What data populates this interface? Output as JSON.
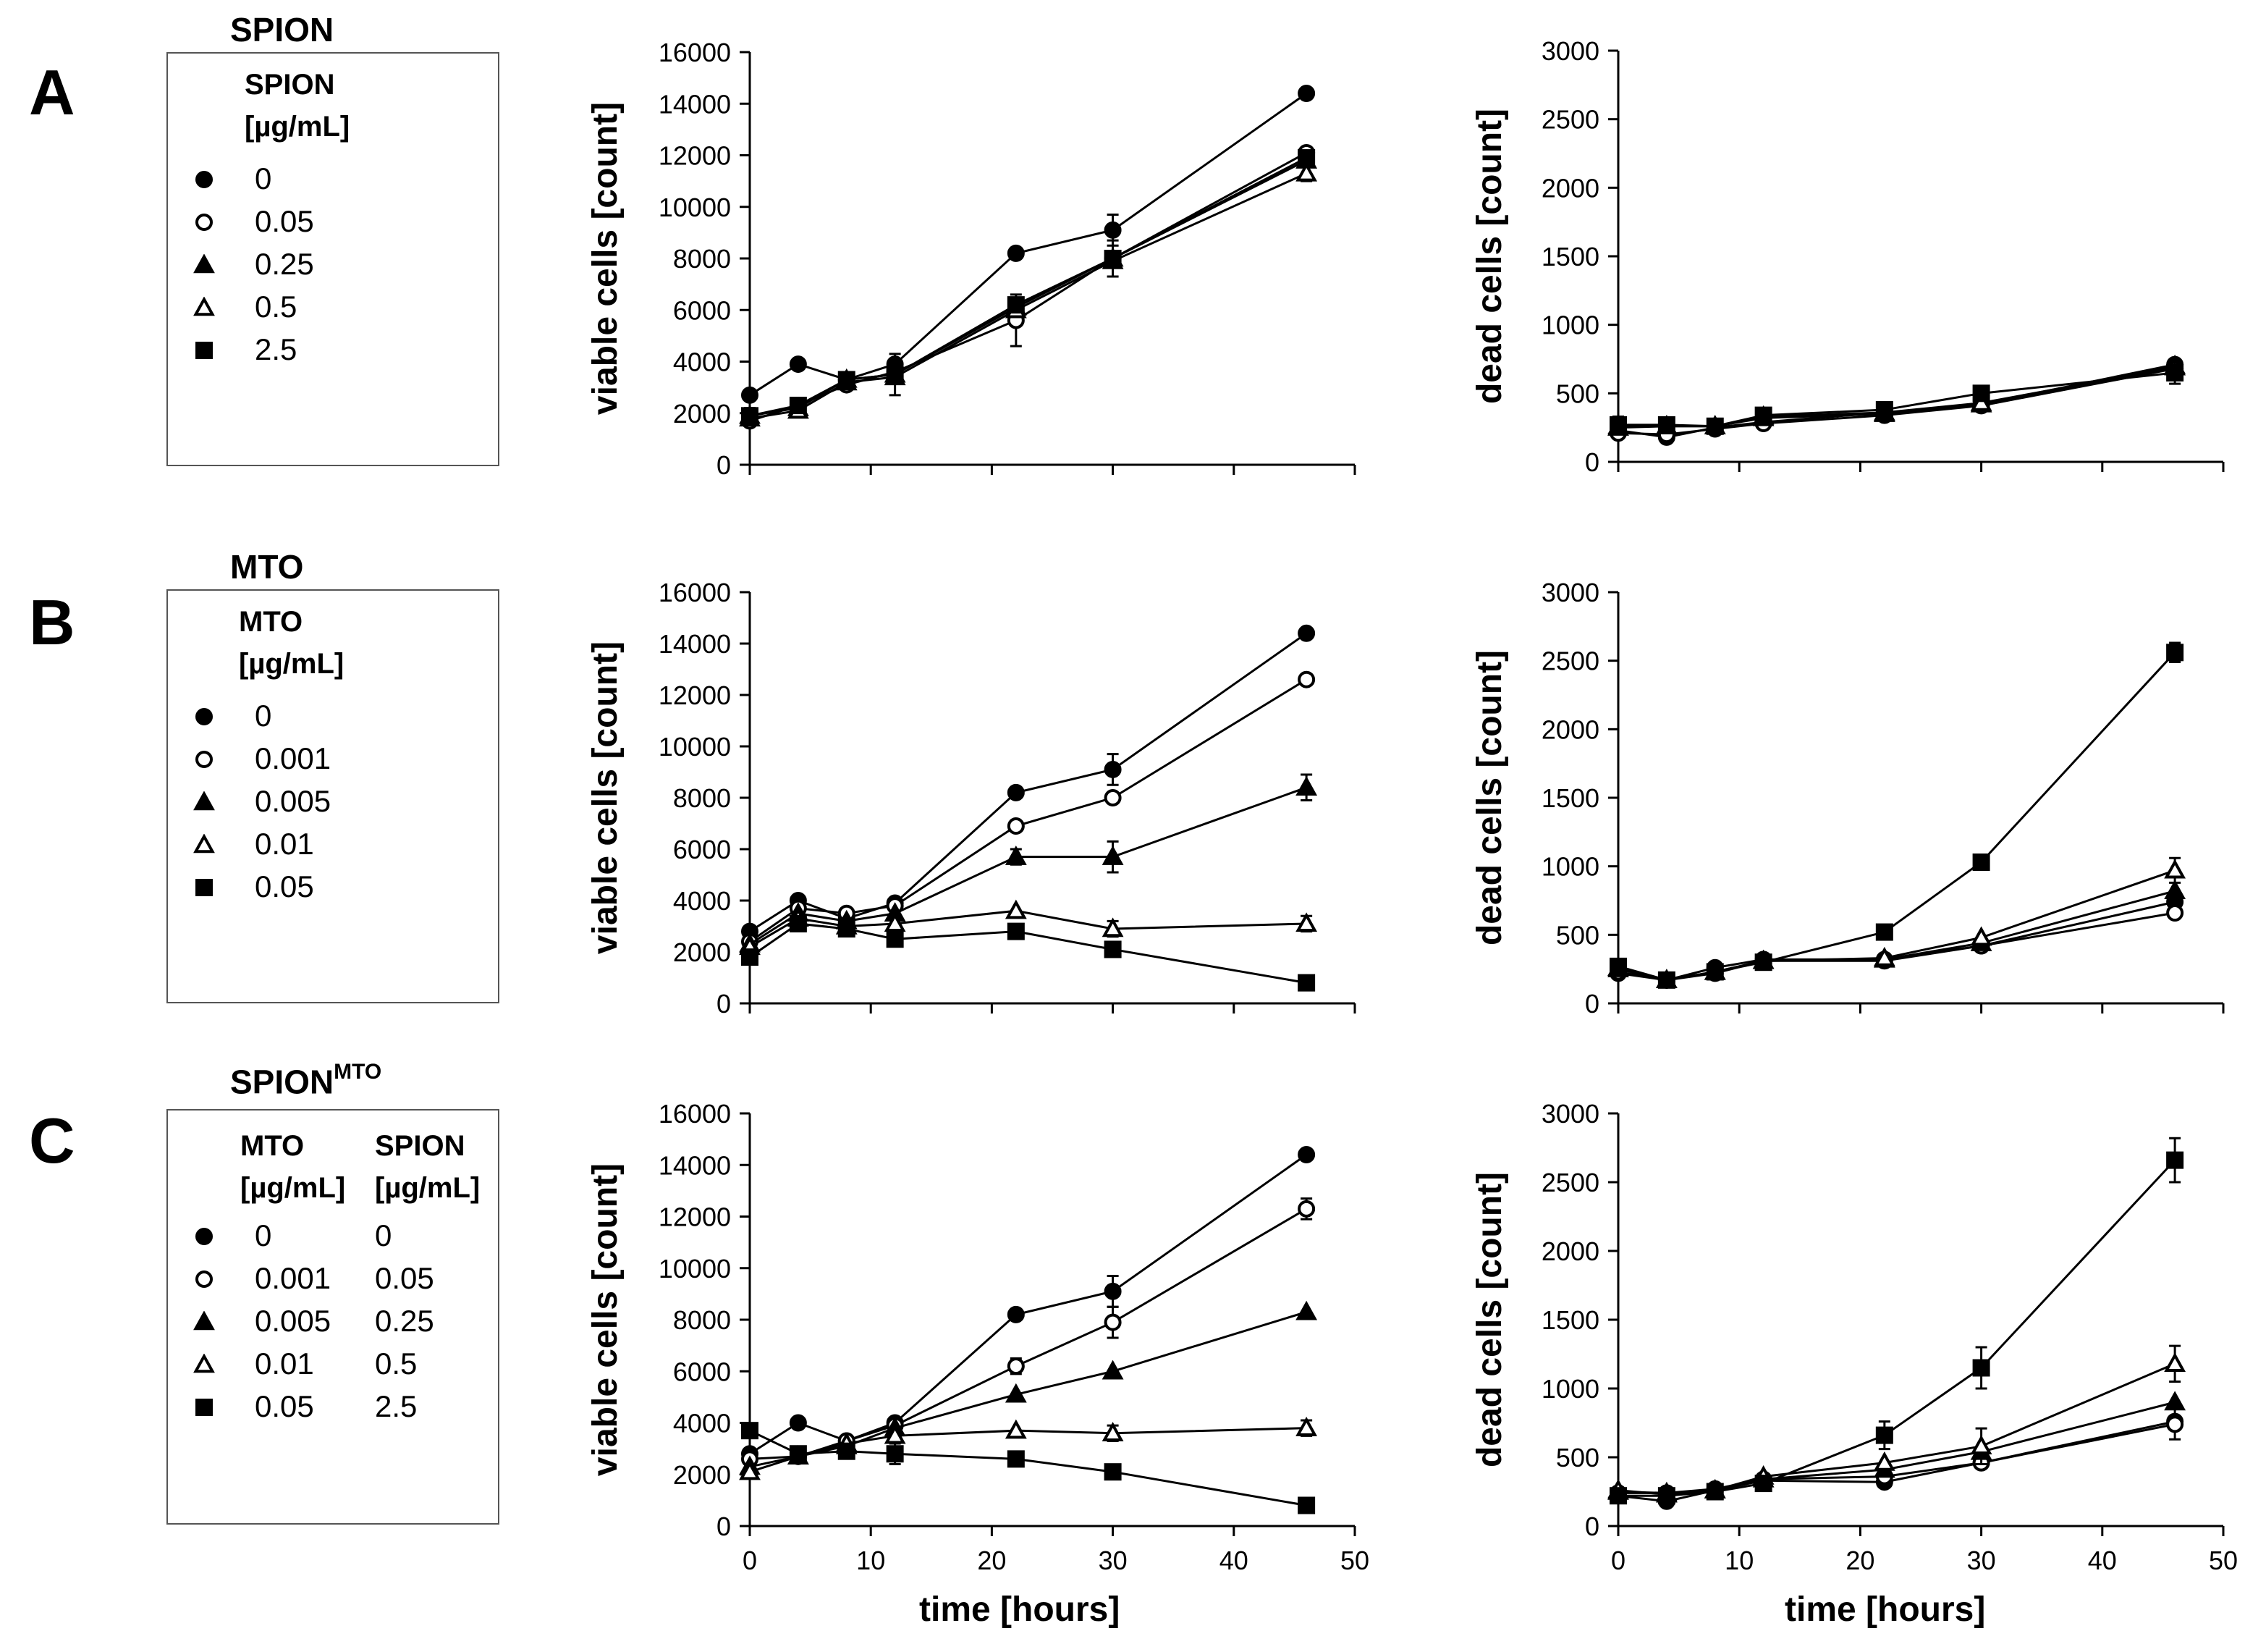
{
  "panels": [
    {
      "letter": "A",
      "title": "SPION",
      "title_sup": "",
      "legend_headers": [
        [
          "SPION",
          "[µg/mL]"
        ]
      ],
      "legend_rows": [
        {
          "marker": "filled-circle",
          "labels": [
            "0"
          ]
        },
        {
          "marker": "open-circle",
          "labels": [
            "0.05"
          ]
        },
        {
          "marker": "filled-triangle",
          "labels": [
            "0.25"
          ]
        },
        {
          "marker": "open-triangle",
          "labels": [
            "0.5"
          ]
        },
        {
          "marker": "filled-square",
          "labels": [
            "2.5"
          ]
        }
      ]
    },
    {
      "letter": "B",
      "title": "MTO",
      "title_sup": "",
      "legend_headers": [
        [
          "MTO",
          "[µg/mL]"
        ]
      ],
      "legend_rows": [
        {
          "marker": "filled-circle",
          "labels": [
            "0"
          ]
        },
        {
          "marker": "open-circle",
          "labels": [
            "0.001"
          ]
        },
        {
          "marker": "filled-triangle",
          "labels": [
            "0.005"
          ]
        },
        {
          "marker": "open-triangle",
          "labels": [
            "0.01"
          ]
        },
        {
          "marker": "filled-square",
          "labels": [
            "0.05"
          ]
        }
      ]
    },
    {
      "letter": "C",
      "title": "SPION",
      "title_sup": "MTO",
      "legend_headers": [
        [
          "MTO",
          "[µg/mL]"
        ],
        [
          "SPION",
          "[µg/mL]"
        ]
      ],
      "legend_rows": [
        {
          "marker": "filled-circle",
          "labels": [
            "0",
            "0"
          ]
        },
        {
          "marker": "open-circle",
          "labels": [
            "0.001",
            "0.05"
          ]
        },
        {
          "marker": "filled-triangle",
          "labels": [
            "0.005",
            "0.25"
          ]
        },
        {
          "marker": "open-triangle",
          "labels": [
            "0.01",
            "0.5"
          ]
        },
        {
          "marker": "filled-square",
          "labels": [
            "0.05",
            "2.5"
          ]
        }
      ]
    }
  ],
  "x_axis_title": "time [hours]",
  "chart_data": [
    {
      "type": "line",
      "panel": "A",
      "title": "",
      "ylabel": "viable cells [count]",
      "xlabel": "",
      "xlim": [
        0,
        50
      ],
      "ylim": [
        0,
        16000
      ],
      "xticks": [
        0,
        10,
        20,
        30,
        40,
        50
      ],
      "yticks": [
        0,
        2000,
        4000,
        6000,
        8000,
        10000,
        12000,
        14000,
        16000
      ],
      "show_xticklabels": false,
      "x": [
        0,
        4,
        8,
        12,
        22,
        30,
        46
      ],
      "series": [
        {
          "name": "0",
          "marker": "filled-circle",
          "values": [
            2700,
            3900,
            3300,
            3900,
            8200,
            9100,
            14400
          ],
          "errors": [
            0,
            0,
            0,
            0,
            0,
            600,
            0
          ]
        },
        {
          "name": "0.05",
          "marker": "open-circle",
          "values": [
            1700,
            2300,
            3100,
            3600,
            5600,
            8000,
            12100
          ],
          "errors": [
            0,
            0,
            0,
            0,
            1000,
            0,
            0
          ]
        },
        {
          "name": "0.25",
          "marker": "filled-triangle",
          "values": [
            1900,
            2200,
            3300,
            3500,
            6100,
            8000,
            11800
          ],
          "errors": [
            0,
            0,
            0,
            0,
            0,
            0,
            0
          ]
        },
        {
          "name": "0.5",
          "marker": "open-triangle",
          "values": [
            1800,
            2100,
            3200,
            3400,
            6000,
            7900,
            11300
          ],
          "errors": [
            0,
            0,
            0,
            0,
            0,
            0,
            300
          ]
        },
        {
          "name": "2.5",
          "marker": "filled-square",
          "values": [
            1900,
            2300,
            3300,
            3500,
            6200,
            8000,
            11900
          ],
          "errors": [
            300,
            0,
            0,
            800,
            0,
            700,
            0
          ]
        }
      ]
    },
    {
      "type": "line",
      "panel": "A",
      "title": "",
      "ylabel": "dead cells [count]",
      "xlabel": "",
      "xlim": [
        0,
        50
      ],
      "ylim": [
        0,
        3000
      ],
      "xticks": [
        0,
        10,
        20,
        30,
        40,
        50
      ],
      "yticks": [
        0,
        500,
        1000,
        1500,
        2000,
        2500,
        3000
      ],
      "show_xticklabels": false,
      "x": [
        0,
        4,
        8,
        12,
        22,
        30,
        46
      ],
      "series": [
        {
          "name": "0",
          "marker": "filled-circle",
          "values": [
            230,
            180,
            250,
            290,
            360,
            420,
            710
          ],
          "errors": [
            0,
            0,
            0,
            0,
            0,
            0,
            0
          ]
        },
        {
          "name": "0.05",
          "marker": "open-circle",
          "values": [
            210,
            200,
            240,
            280,
            340,
            410,
            680
          ],
          "errors": [
            0,
            0,
            0,
            0,
            0,
            0,
            0
          ]
        },
        {
          "name": "0.25",
          "marker": "filled-triangle",
          "values": [
            250,
            260,
            260,
            320,
            350,
            420,
            700
          ],
          "errors": [
            0,
            0,
            0,
            0,
            0,
            0,
            0
          ]
        },
        {
          "name": "0.5",
          "marker": "open-triangle",
          "values": [
            260,
            260,
            260,
            330,
            360,
            430,
            690
          ],
          "errors": [
            0,
            0,
            0,
            0,
            0,
            0,
            0
          ]
        },
        {
          "name": "2.5",
          "marker": "filled-square",
          "values": [
            270,
            270,
            260,
            340,
            380,
            500,
            650
          ],
          "errors": [
            60,
            0,
            0,
            0,
            0,
            0,
            80
          ]
        }
      ]
    },
    {
      "type": "line",
      "panel": "B",
      "title": "",
      "ylabel": "viable cells [count]",
      "xlabel": "",
      "xlim": [
        0,
        50
      ],
      "ylim": [
        0,
        16000
      ],
      "xticks": [
        0,
        10,
        20,
        30,
        40,
        50
      ],
      "yticks": [
        0,
        2000,
        4000,
        6000,
        8000,
        10000,
        12000,
        14000,
        16000
      ],
      "show_xticklabels": false,
      "x": [
        0,
        4,
        8,
        12,
        22,
        30,
        46
      ],
      "series": [
        {
          "name": "0",
          "marker": "filled-circle",
          "values": [
            2800,
            4000,
            3300,
            3900,
            8200,
            9100,
            14400
          ],
          "errors": [
            0,
            0,
            0,
            0,
            0,
            600,
            0
          ]
        },
        {
          "name": "0.001",
          "marker": "open-circle",
          "values": [
            2400,
            3700,
            3500,
            3800,
            6900,
            8000,
            12600
          ],
          "errors": [
            0,
            0,
            0,
            0,
            0,
            0,
            0
          ]
        },
        {
          "name": "0.005",
          "marker": "filled-triangle",
          "values": [
            2300,
            3500,
            3200,
            3500,
            5700,
            5700,
            8400
          ],
          "errors": [
            0,
            0,
            0,
            0,
            300,
            600,
            500
          ]
        },
        {
          "name": "0.01",
          "marker": "open-triangle",
          "values": [
            2200,
            3300,
            3000,
            3100,
            3600,
            2900,
            3100
          ],
          "errors": [
            0,
            0,
            0,
            0,
            0,
            300,
            300
          ]
        },
        {
          "name": "0.05",
          "marker": "filled-square",
          "values": [
            1800,
            3100,
            2900,
            2500,
            2800,
            2100,
            800
          ],
          "errors": [
            0,
            0,
            0,
            0,
            0,
            0,
            0
          ]
        }
      ]
    },
    {
      "type": "line",
      "panel": "B",
      "title": "",
      "ylabel": "dead cells [count]",
      "xlabel": "",
      "xlim": [
        0,
        50
      ],
      "ylim": [
        0,
        3000
      ],
      "xticks": [
        0,
        10,
        20,
        30,
        40,
        50
      ],
      "yticks": [
        0,
        500,
        1000,
        1500,
        2000,
        2500,
        3000
      ],
      "show_xticklabels": false,
      "x": [
        0,
        4,
        8,
        12,
        22,
        30,
        46
      ],
      "series": [
        {
          "name": "0",
          "marker": "filled-circle",
          "values": [
            220,
            170,
            260,
            320,
            320,
            420,
            740
          ],
          "errors": [
            0,
            0,
            0,
            0,
            0,
            0,
            0
          ]
        },
        {
          "name": "0.001",
          "marker": "open-circle",
          "values": [
            230,
            170,
            220,
            310,
            310,
            420,
            660
          ],
          "errors": [
            0,
            0,
            0,
            0,
            0,
            0,
            0
          ]
        },
        {
          "name": "0.005",
          "marker": "filled-triangle",
          "values": [
            250,
            170,
            230,
            310,
            320,
            440,
            820
          ],
          "errors": [
            0,
            0,
            0,
            0,
            0,
            0,
            0
          ]
        },
        {
          "name": "0.01",
          "marker": "open-triangle",
          "values": [
            260,
            170,
            230,
            310,
            330,
            480,
            970
          ],
          "errors": [
            0,
            0,
            0,
            0,
            0,
            0,
            90
          ]
        },
        {
          "name": "0.05",
          "marker": "filled-square",
          "values": [
            270,
            170,
            230,
            300,
            520,
            1030,
            2560
          ],
          "errors": [
            0,
            0,
            0,
            0,
            0,
            0,
            70
          ]
        }
      ]
    },
    {
      "type": "line",
      "panel": "C",
      "title": "",
      "ylabel": "viable cells [count]",
      "xlabel": "time [hours]",
      "xlim": [
        0,
        50
      ],
      "ylim": [
        0,
        16000
      ],
      "xticks": [
        0,
        10,
        20,
        30,
        40,
        50
      ],
      "yticks": [
        0,
        2000,
        4000,
        6000,
        8000,
        10000,
        12000,
        14000,
        16000
      ],
      "show_xticklabels": true,
      "x": [
        0,
        4,
        8,
        12,
        22,
        30,
        46
      ],
      "series": [
        {
          "name": "0",
          "marker": "filled-circle",
          "values": [
            2800,
            4000,
            3300,
            4000,
            8200,
            9100,
            14400
          ],
          "errors": [
            0,
            0,
            0,
            0,
            0,
            600,
            0
          ]
        },
        {
          "name": "0.001 / 0.05",
          "marker": "open-circle",
          "values": [
            2600,
            2700,
            3300,
            3900,
            6200,
            7900,
            12300
          ],
          "errors": [
            0,
            0,
            0,
            0,
            300,
            600,
            400
          ]
        },
        {
          "name": "0.005 / 0.25",
          "marker": "filled-triangle",
          "values": [
            2300,
            2700,
            3100,
            3800,
            5100,
            6000,
            8300
          ],
          "errors": [
            0,
            0,
            0,
            0,
            0,
            0,
            0
          ]
        },
        {
          "name": "0.01 / 0.5",
          "marker": "open-triangle",
          "values": [
            2100,
            2700,
            3200,
            3500,
            3700,
            3600,
            3800
          ],
          "errors": [
            0,
            0,
            0,
            0,
            0,
            300,
            300
          ]
        },
        {
          "name": "0.05 / 2.5",
          "marker": "filled-square",
          "values": [
            3700,
            2800,
            2900,
            2800,
            2600,
            2100,
            800
          ],
          "errors": [
            0,
            0,
            0,
            400,
            0,
            0,
            0
          ]
        }
      ]
    },
    {
      "type": "line",
      "panel": "C",
      "title": "",
      "ylabel": "dead cells [count]",
      "xlabel": "time [hours]",
      "xlim": [
        0,
        50
      ],
      "ylim": [
        0,
        3000
      ],
      "xticks": [
        0,
        10,
        20,
        30,
        40,
        50
      ],
      "yticks": [
        0,
        500,
        1000,
        1500,
        2000,
        2500,
        3000
      ],
      "show_xticklabels": true,
      "x": [
        0,
        4,
        8,
        12,
        22,
        30,
        46
      ],
      "series": [
        {
          "name": "0",
          "marker": "filled-circle",
          "values": [
            220,
            180,
            260,
            330,
            320,
            460,
            760
          ],
          "errors": [
            0,
            0,
            0,
            0,
            0,
            0,
            0
          ]
        },
        {
          "name": "0.001 / 0.05",
          "marker": "open-circle",
          "values": [
            240,
            240,
            270,
            340,
            360,
            460,
            740
          ],
          "errors": [
            0,
            0,
            0,
            0,
            0,
            0,
            110
          ]
        },
        {
          "name": "0.005 / 0.25",
          "marker": "filled-triangle",
          "values": [
            250,
            240,
            260,
            340,
            410,
            540,
            900
          ],
          "errors": [
            0,
            0,
            0,
            0,
            0,
            0,
            0
          ]
        },
        {
          "name": "0.01 / 0.5",
          "marker": "open-triangle",
          "values": [
            260,
            230,
            260,
            360,
            460,
            580,
            1180
          ],
          "errors": [
            0,
            0,
            0,
            0,
            0,
            130,
            130
          ]
        },
        {
          "name": "0.05 / 2.5",
          "marker": "filled-square",
          "values": [
            220,
            220,
            250,
            310,
            660,
            1150,
            2660
          ],
          "errors": [
            0,
            0,
            0,
            0,
            100,
            150,
            160
          ]
        }
      ]
    }
  ]
}
